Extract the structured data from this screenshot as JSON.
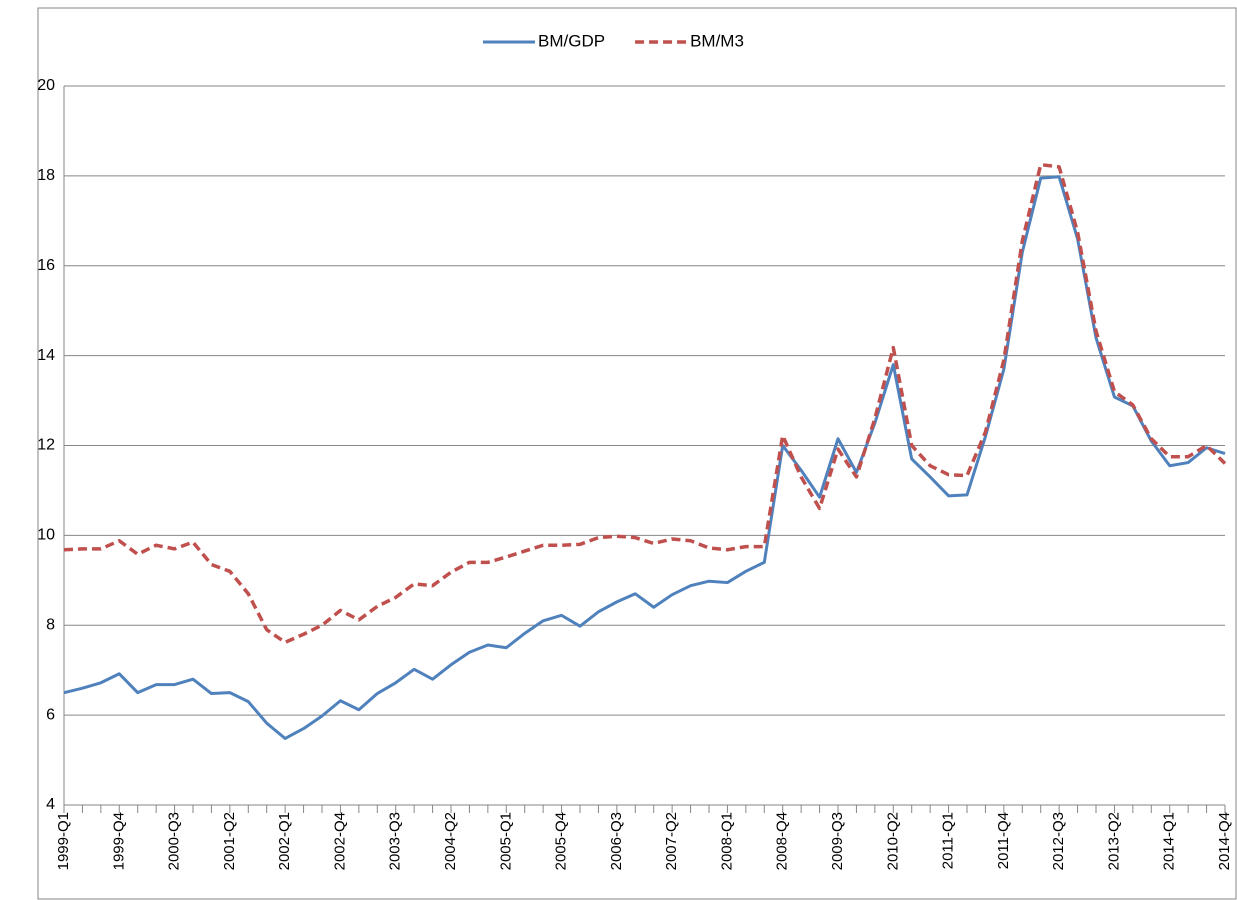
{
  "chart_data": {
    "type": "line",
    "categories": [
      "1999-Q1",
      null,
      null,
      "1999-Q4",
      null,
      null,
      "2000-Q3",
      null,
      null,
      "2001-Q2",
      null,
      null,
      "2002-Q1",
      null,
      null,
      "2002-Q4",
      null,
      null,
      "2003-Q3",
      null,
      null,
      "2004-Q2",
      null,
      null,
      "2005-Q1",
      null,
      null,
      "2005-Q4",
      null,
      null,
      "2006-Q3",
      null,
      null,
      "2007-Q2",
      null,
      null,
      "2008-Q1",
      null,
      null,
      "2008-Q4",
      null,
      null,
      "2009-Q3",
      null,
      null,
      "2010-Q2",
      null,
      null,
      "2011-Q1",
      null,
      null,
      "2011-Q4",
      null,
      null,
      "2012-Q3",
      null,
      null,
      "2013-Q2",
      null,
      null,
      "2014-Q1",
      null,
      null,
      "2014-Q4"
    ],
    "series": [
      {
        "name": "BM/GDP",
        "color": "#4f81bd",
        "dash": false,
        "values": [
          6.5,
          6.6,
          6.72,
          6.92,
          6.5,
          6.68,
          6.68,
          6.8,
          6.48,
          6.5,
          6.3,
          5.82,
          5.48,
          5.7,
          5.98,
          6.32,
          6.12,
          6.48,
          6.72,
          7.02,
          6.8,
          7.12,
          7.4,
          7.56,
          7.5,
          7.82,
          8.1,
          8.22,
          7.98,
          8.3,
          8.52,
          8.7,
          8.4,
          8.68,
          8.88,
          8.98,
          8.95,
          9.2,
          9.4,
          12.0,
          11.45,
          10.85,
          12.15,
          11.4,
          12.5,
          13.8,
          11.7,
          11.3,
          10.88,
          10.9,
          12.2,
          13.7,
          16.3,
          17.95,
          17.98,
          16.6,
          14.4,
          13.08,
          12.88,
          12.1,
          11.55,
          11.62,
          11.95,
          11.82
        ]
      },
      {
        "name": "BM/M3",
        "color": "#c0504d",
        "dash": true,
        "values": [
          9.68,
          9.7,
          9.7,
          9.88,
          9.58,
          9.78,
          9.7,
          9.85,
          9.35,
          9.2,
          8.7,
          7.9,
          7.62,
          7.8,
          8.0,
          8.33,
          8.12,
          8.42,
          8.62,
          8.92,
          8.88,
          9.18,
          9.4,
          9.4,
          9.52,
          9.65,
          9.78,
          9.78,
          9.8,
          9.95,
          9.98,
          9.95,
          9.82,
          9.92,
          9.88,
          9.72,
          9.68,
          9.75,
          9.75,
          12.22,
          11.3,
          10.6,
          11.92,
          11.3,
          12.6,
          14.18,
          12.0,
          11.55,
          11.35,
          11.33,
          12.3,
          13.9,
          16.55,
          18.25,
          18.2,
          16.75,
          14.55,
          13.2,
          12.9,
          12.15,
          11.75,
          11.75,
          12.0,
          11.6
        ]
      }
    ],
    "ylim": [
      4,
      20
    ],
    "yticks": [
      4,
      6,
      8,
      10,
      12,
      14,
      16,
      18,
      20
    ],
    "grid": true,
    "legend": "top"
  }
}
